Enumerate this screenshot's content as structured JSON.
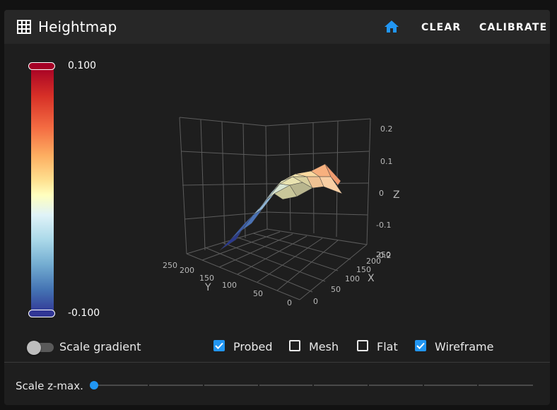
{
  "header": {
    "title": "Heightmap",
    "title_icon": "grid-icon",
    "home_icon": "home-icon",
    "clear_label": "CLEAR",
    "calibrate_label": "CALIBRATE",
    "accent_color": "#2196f3"
  },
  "gradient": {
    "max_label": "0.100",
    "min_label": "-0.100"
  },
  "plot": {
    "z_ticks": [
      "0.2",
      "0.1",
      "0",
      "-0.1",
      "-0.2"
    ],
    "z_label": "Z",
    "x_ticks": [
      "0",
      "50",
      "100",
      "150",
      "200",
      "250"
    ],
    "x_label": "X",
    "y_ticks": [
      "0",
      "50",
      "100",
      "150",
      "200",
      "250"
    ],
    "y_label": "Y"
  },
  "options": {
    "scale_gradient_label": "Scale gradient",
    "scale_gradient_on": false,
    "probed_label": "Probed",
    "probed_checked": true,
    "mesh_label": "Mesh",
    "mesh_checked": false,
    "flat_label": "Flat",
    "flat_checked": false,
    "wireframe_label": "Wireframe",
    "wireframe_checked": true
  },
  "zmax": {
    "label": "Scale z-max.",
    "value_fraction": 0.0
  }
}
